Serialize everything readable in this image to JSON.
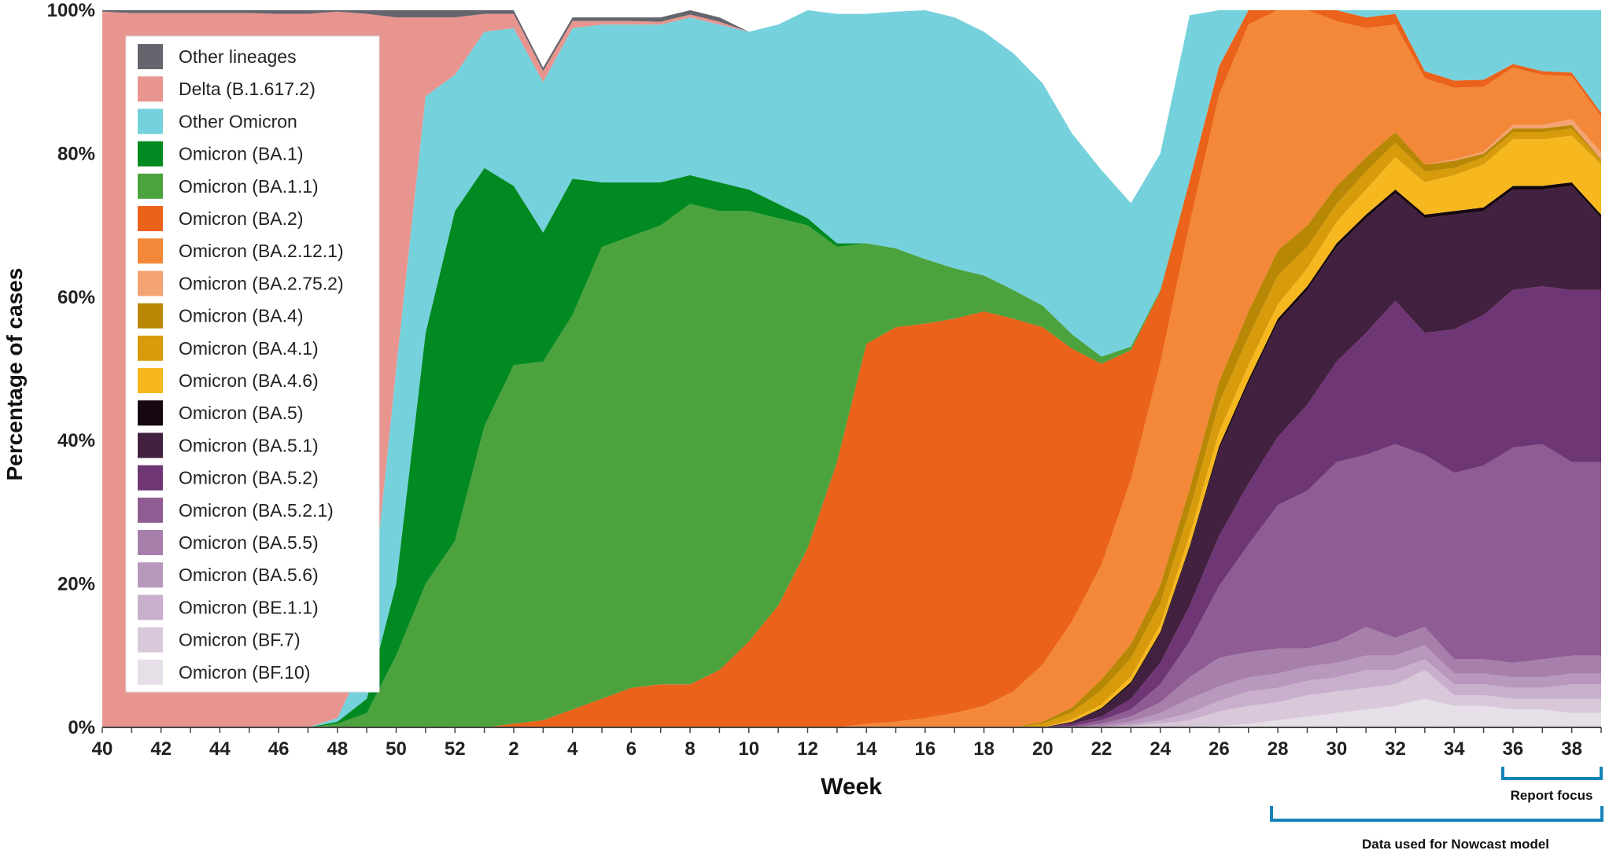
{
  "chart_data": {
    "type": "area",
    "stacked": true,
    "normalized": true,
    "xlabel": "Week",
    "ylabel": "Percentage of cases",
    "y_ticks": [
      "0%",
      "20%",
      "40%",
      "60%",
      "80%",
      "100%"
    ],
    "ylim": [
      0,
      100
    ],
    "x_ticks": [
      "40",
      "42",
      "44",
      "46",
      "48",
      "50",
      "52",
      "2",
      "4",
      "6",
      "8",
      "10",
      "12",
      "14",
      "16",
      "18",
      "20",
      "22",
      "24",
      "26",
      "28",
      "30",
      "32",
      "34",
      "36",
      "38"
    ],
    "weeks": [
      "40",
      "41",
      "42",
      "43",
      "44",
      "45",
      "46",
      "47",
      "48",
      "49",
      "50",
      "51",
      "52",
      "1",
      "2",
      "3",
      "4",
      "5",
      "6",
      "7",
      "8",
      "9",
      "10",
      "11",
      "12",
      "13",
      "14",
      "15",
      "16",
      "17",
      "18",
      "19",
      "20",
      "21",
      "22",
      "23",
      "24",
      "25",
      "26",
      "27",
      "28",
      "29",
      "30",
      "31",
      "32",
      "33",
      "34",
      "35",
      "36",
      "37",
      "38",
      "39"
    ],
    "grid": false,
    "legend_position": "top-left",
    "legend_order": [
      "Other lineages",
      "Delta (B.1.617.2)",
      "Other Omicron",
      "Omicron (BA.1)",
      "Omicron (BA.1.1)",
      "Omicron (BA.2)",
      "Omicron (BA.2.12.1)",
      "Omicron (BA.2.75.2)",
      "Omicron (BA.4)",
      "Omicron (BA.4.1)",
      "Omicron (BA.4.6)",
      "Omicron (BA.5)",
      "Omicron (BA.5.1)",
      "Omicron (BA.5.2)",
      "Omicron (BA.5.2.1)",
      "Omicron (BA.5.5)",
      "Omicron (BA.5.6)",
      "Omicron (BE.1.1)",
      "Omicron (BF.7)",
      "Omicron (BF.10)"
    ],
    "series": [
      {
        "name": "Omicron (BF.10)",
        "color": "#e6dfe8",
        "values": [
          0,
          0,
          0,
          0,
          0,
          0,
          0,
          0,
          0,
          0,
          0,
          0,
          0,
          0,
          0,
          0,
          0,
          0,
          0,
          0,
          0,
          0,
          0,
          0,
          0,
          0,
          0,
          0,
          0,
          0,
          0,
          0,
          0,
          0,
          0,
          0,
          0,
          0,
          0.2,
          0.5,
          1,
          1.5,
          2,
          2.5,
          3,
          4,
          3,
          3,
          2.5,
          2.5,
          2,
          2
        ]
      },
      {
        "name": "Omicron (BF.7)",
        "color": "#d8c8da",
        "values": [
          0,
          0,
          0,
          0,
          0,
          0,
          0,
          0,
          0,
          0,
          0,
          0,
          0,
          0,
          0,
          0,
          0,
          0,
          0,
          0,
          0,
          0,
          0,
          0,
          0,
          0,
          0,
          0,
          0,
          0,
          0,
          0,
          0,
          0,
          0,
          0.2,
          0.5,
          1,
          2,
          2.5,
          2.5,
          3,
          3,
          3,
          3,
          4,
          1.5,
          1.5,
          1.5,
          1.5,
          2,
          2
        ]
      },
      {
        "name": "Omicron (BE.1.1)",
        "color": "#c8b0cc",
        "values": [
          0,
          0,
          0,
          0,
          0,
          0,
          0,
          0,
          0,
          0,
          0,
          0,
          0,
          0,
          0,
          0,
          0,
          0,
          0,
          0,
          0,
          0,
          0,
          0,
          0,
          0,
          0,
          0,
          0,
          0,
          0,
          0,
          0,
          0,
          0,
          0.2,
          0.5,
          1,
          1.5,
          2,
          2,
          2,
          2,
          2.5,
          2,
          1.5,
          1.5,
          1.5,
          1.5,
          1.5,
          2,
          2
        ]
      },
      {
        "name": "Omicron (BA.5.6)",
        "color": "#b898bc",
        "values": [
          0,
          0,
          0,
          0,
          0,
          0,
          0,
          0,
          0,
          0,
          0,
          0,
          0,
          0,
          0,
          0,
          0,
          0,
          0,
          0,
          0,
          0,
          0,
          0,
          0,
          0,
          0,
          0,
          0,
          0,
          0,
          0,
          0,
          0,
          0.2,
          0.4,
          1,
          2,
          2,
          2,
          2,
          2,
          2,
          2,
          2,
          2,
          1.5,
          1.5,
          1.5,
          1.5,
          1.5,
          1.5
        ]
      },
      {
        "name": "Omicron (BA.5.5)",
        "color": "#a67fab",
        "values": [
          0,
          0,
          0,
          0,
          0,
          0,
          0,
          0,
          0,
          0,
          0,
          0,
          0,
          0,
          0,
          0,
          0,
          0,
          0,
          0,
          0,
          0,
          0,
          0,
          0,
          0,
          0,
          0,
          0,
          0,
          0,
          0,
          0,
          0,
          0.3,
          0.7,
          1.5,
          3,
          4,
          3.5,
          3.5,
          2.5,
          3,
          4,
          2.5,
          2.5,
          2,
          2,
          2,
          2.5,
          2.5,
          2.5
        ]
      },
      {
        "name": "Omicron (BA.5.2.1)",
        "color": "#8f5c93",
        "values": [
          0,
          0,
          0,
          0,
          0,
          0,
          0,
          0,
          0,
          0,
          0,
          0,
          0,
          0,
          0,
          0,
          0,
          0,
          0,
          0,
          0,
          0,
          0,
          0,
          0,
          0,
          0,
          0,
          0,
          0,
          0,
          0,
          0,
          0.2,
          0.5,
          1,
          2.5,
          5,
          10,
          15,
          20,
          22,
          25,
          24,
          27,
          24,
          26,
          27,
          30,
          30,
          27,
          27
        ]
      },
      {
        "name": "Omicron (BA.5.2)",
        "color": "#6f3675",
        "values": [
          0,
          0,
          0,
          0,
          0,
          0,
          0,
          0,
          0,
          0,
          0,
          0,
          0,
          0,
          0,
          0,
          0,
          0,
          0,
          0,
          0,
          0,
          0,
          0,
          0,
          0,
          0,
          0,
          0,
          0,
          0,
          0,
          0,
          0.3,
          0.5,
          1.5,
          3,
          5,
          7,
          8.5,
          9.5,
          12,
          14,
          17,
          20,
          17,
          20,
          21,
          22,
          22,
          24,
          24
        ]
      },
      {
        "name": "Omicron (BA.5.1)",
        "color": "#42203f",
        "values": [
          0,
          0,
          0,
          0,
          0,
          0,
          0,
          0,
          0,
          0,
          0,
          0,
          0,
          0,
          0,
          0,
          0,
          0,
          0,
          0,
          0,
          0,
          0,
          0,
          0,
          0,
          0,
          0,
          0,
          0,
          0,
          0,
          0,
          0.3,
          1,
          2,
          4,
          8,
          12,
          14,
          16,
          16,
          16,
          16,
          15,
          16,
          16,
          14.5,
          14,
          13.5,
          14.5,
          10
        ]
      },
      {
        "name": "Omicron (BA.5)",
        "color": "#160710",
        "values": [
          0,
          0,
          0,
          0,
          0,
          0,
          0,
          0,
          0,
          0,
          0,
          0,
          0,
          0,
          0,
          0,
          0,
          0,
          0,
          0,
          0,
          0,
          0,
          0,
          0,
          0,
          0,
          0,
          0,
          0,
          0,
          0,
          0,
          0,
          0.2,
          0.3,
          0.3,
          0.3,
          0.5,
          0.5,
          0.5,
          0.5,
          0.5,
          0.5,
          0.5,
          0.5,
          0.5,
          0.5,
          0.5,
          0.5,
          0.5,
          0.5
        ]
      },
      {
        "name": "Omicron (BA.4.6)",
        "color": "#f6b81e",
        "values": [
          0,
          0,
          0,
          0,
          0,
          0,
          0,
          0,
          0,
          0,
          0,
          0,
          0,
          0,
          0,
          0,
          0,
          0,
          0,
          0,
          0,
          0,
          0,
          0,
          0,
          0,
          0,
          0,
          0,
          0,
          0,
          0,
          0,
          0.3,
          0.5,
          0.8,
          1,
          1.5,
          2,
          2,
          2,
          2.5,
          3,
          3.5,
          4.5,
          4.5,
          5,
          6,
          6.5,
          6.5,
          6.5,
          7
        ]
      },
      {
        "name": "Omicron (BA.4.1)",
        "color": "#d79b0c",
        "values": [
          0,
          0,
          0,
          0,
          0,
          0,
          0,
          0,
          0,
          0,
          0,
          0,
          0,
          0,
          0,
          0,
          0,
          0,
          0,
          0,
          0,
          0,
          0,
          0,
          0,
          0,
          0,
          0,
          0,
          0,
          0,
          0,
          0.5,
          1,
          2,
          2.5,
          3,
          3.5,
          4,
          4,
          4,
          3,
          2.5,
          2.5,
          2,
          1.5,
          1,
          1,
          1,
          1,
          1,
          0.5
        ]
      },
      {
        "name": "Omicron (BA.4)",
        "color": "#b88705",
        "values": [
          0,
          0,
          0,
          0,
          0,
          0,
          0,
          0,
          0,
          0,
          0,
          0,
          0,
          0,
          0,
          0,
          0,
          0,
          0,
          0,
          0,
          0,
          0,
          0,
          0,
          0,
          0,
          0,
          0,
          0,
          0,
          0,
          0.3,
          0.7,
          1.5,
          2,
          2.5,
          3,
          3,
          3.5,
          3.5,
          3,
          2.5,
          2,
          1.5,
          1,
          1,
          0.5,
          0.5,
          0.5,
          0.5,
          0.2
        ]
      },
      {
        "name": "Omicron (BA.2.75.2)",
        "color": "#f4a373",
        "values": [
          0,
          0,
          0,
          0,
          0,
          0,
          0,
          0,
          0,
          0,
          0,
          0,
          0,
          0,
          0,
          0,
          0,
          0,
          0,
          0,
          0,
          0,
          0,
          0,
          0,
          0,
          0,
          0,
          0,
          0,
          0,
          0,
          0,
          0,
          0,
          0,
          0,
          0,
          0,
          0,
          0,
          0,
          0,
          0,
          0,
          0,
          0.2,
          0.3,
          0.5,
          0.5,
          0.8,
          1
        ]
      },
      {
        "name": "Omicron (BA.2.12.1)",
        "color": "#f28838",
        "values": [
          0,
          0,
          0,
          0,
          0,
          0,
          0,
          0,
          0,
          0,
          0,
          0,
          0,
          0,
          0,
          0,
          0,
          0,
          0,
          0,
          0,
          0,
          0,
          0,
          0,
          0,
          0.5,
          0.8,
          1.3,
          2,
          3,
          5,
          8,
          12,
          16,
          23,
          31,
          37,
          40,
          40,
          40,
          32,
          23,
          18,
          15,
          12,
          10,
          9,
          8,
          7,
          6,
          5
        ]
      },
      {
        "name": "Omicron (BA.2)",
        "color": "#eb621a",
        "values": [
          0,
          0,
          0,
          0,
          0,
          0,
          0,
          0,
          0,
          0,
          0,
          0,
          0,
          0,
          0.5,
          1,
          2.5,
          4,
          5.5,
          6,
          6,
          8,
          12,
          17,
          25,
          37,
          53,
          55,
          55,
          55,
          55,
          52,
          47,
          38,
          28,
          18,
          10,
          6,
          4,
          4,
          3,
          2,
          1.5,
          1.5,
          1.5,
          1,
          1,
          1,
          0.5,
          0.5,
          0.5,
          0.5
        ]
      },
      {
        "name": "Omicron (BA.1.1)",
        "color": "#4ca23c",
        "values": [
          0,
          0,
          0,
          0,
          0,
          0,
          0,
          0,
          0.5,
          2,
          10,
          20,
          26,
          42,
          50,
          50,
          55,
          63,
          63,
          64,
          67,
          64,
          60,
          54,
          45,
          30,
          14,
          11,
          9,
          7,
          5,
          4,
          3,
          2,
          1,
          0.5,
          0.2,
          0,
          0,
          0,
          0,
          0,
          0,
          0,
          0,
          0,
          0,
          0,
          0,
          0,
          0,
          0
        ]
      },
      {
        "name": "Omicron (BA.1)",
        "color": "#028a22",
        "values": [
          0,
          0,
          0,
          0,
          0,
          0,
          0,
          0,
          0.3,
          2,
          10,
          35,
          46,
          36,
          25,
          18,
          19,
          9,
          7.5,
          6,
          4,
          4,
          3,
          2,
          1,
          0.5,
          0,
          0,
          0,
          0,
          0,
          0,
          0,
          0,
          0,
          0,
          0,
          0,
          0,
          0,
          0,
          0,
          0,
          0,
          0,
          0,
          0,
          0,
          0,
          0,
          0,
          0
        ]
      },
      {
        "name": "Other Omicron",
        "color": "#75d1dc",
        "values": [
          0,
          0,
          0,
          0,
          0,
          0,
          0,
          0,
          0.5,
          6,
          30,
          33,
          19,
          19,
          22,
          21,
          21,
          22,
          22,
          22,
          22,
          22,
          22,
          25,
          31,
          32,
          32,
          33,
          35,
          35,
          34,
          33,
          31,
          28,
          26,
          20,
          19,
          23,
          21,
          20,
          21,
          19,
          17,
          16,
          14,
          19,
          17,
          16,
          15,
          15,
          17,
          19
        ]
      },
      {
        "name": "Delta (B.1.617.2)",
        "color": "#e8958f",
        "values": [
          99.8,
          99.6,
          99.6,
          99.6,
          99.6,
          99.6,
          99.5,
          99.5,
          98.5,
          89.5,
          49,
          11,
          8,
          2.5,
          2,
          1.5,
          1,
          0.5,
          0.5,
          0.4,
          0.4,
          0.4,
          0,
          0,
          0,
          0,
          0,
          0,
          0,
          0,
          0,
          0,
          0,
          0,
          0,
          0,
          0,
          0,
          0,
          0,
          0,
          0,
          0,
          0,
          0,
          0,
          0,
          0,
          0,
          0,
          0,
          0
        ]
      },
      {
        "name": "Other lineages",
        "color": "#65656d",
        "values": [
          0.2,
          0.4,
          0.4,
          0.4,
          0.4,
          0.4,
          0.5,
          0.5,
          0.2,
          0.5,
          1,
          1,
          1,
          0.5,
          0.5,
          0.5,
          0.5,
          0.5,
          0.5,
          0.6,
          0.6,
          0.6,
          0,
          0,
          0,
          0,
          0,
          0,
          0,
          0,
          0,
          0,
          0,
          0,
          0,
          0,
          0,
          0,
          0,
          0,
          0,
          0,
          0,
          0,
          0,
          0,
          0,
          0,
          0,
          0,
          0,
          0
        ]
      }
    ],
    "annotations": [
      {
        "label": "Report focus",
        "from_week": "36",
        "to_week": "39"
      },
      {
        "label": "Data used for Nowcast model",
        "from_week": "28",
        "to_week": "39"
      }
    ]
  }
}
